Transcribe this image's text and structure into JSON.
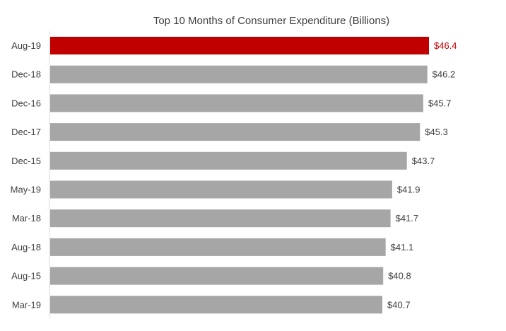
{
  "chart_data": {
    "type": "bar",
    "orientation": "horizontal",
    "title": "Top 10 Months of Consumer Expenditure (Billions)",
    "categories": [
      "Aug-19",
      "Dec-18",
      "Dec-16",
      "Dec-17",
      "Dec-15",
      "May-19",
      "Mar-18",
      "Aug-18",
      "Aug-15",
      "Mar-19"
    ],
    "values": [
      46.4,
      46.2,
      45.7,
      45.3,
      43.7,
      41.9,
      41.7,
      41.1,
      40.8,
      40.7
    ],
    "data_labels": [
      "$46.4",
      "$46.2",
      "$45.7",
      "$45.3",
      "$43.7",
      "$41.9",
      "$41.7",
      "$41.1",
      "$40.8",
      "$40.7"
    ],
    "highlight_index": 0,
    "xlim": [
      0,
      46.4
    ],
    "grid": false,
    "colors": {
      "highlight": "#c00000",
      "bar": "#a6a6a6",
      "axis": "#d9d9d9",
      "text": "#404040"
    }
  }
}
